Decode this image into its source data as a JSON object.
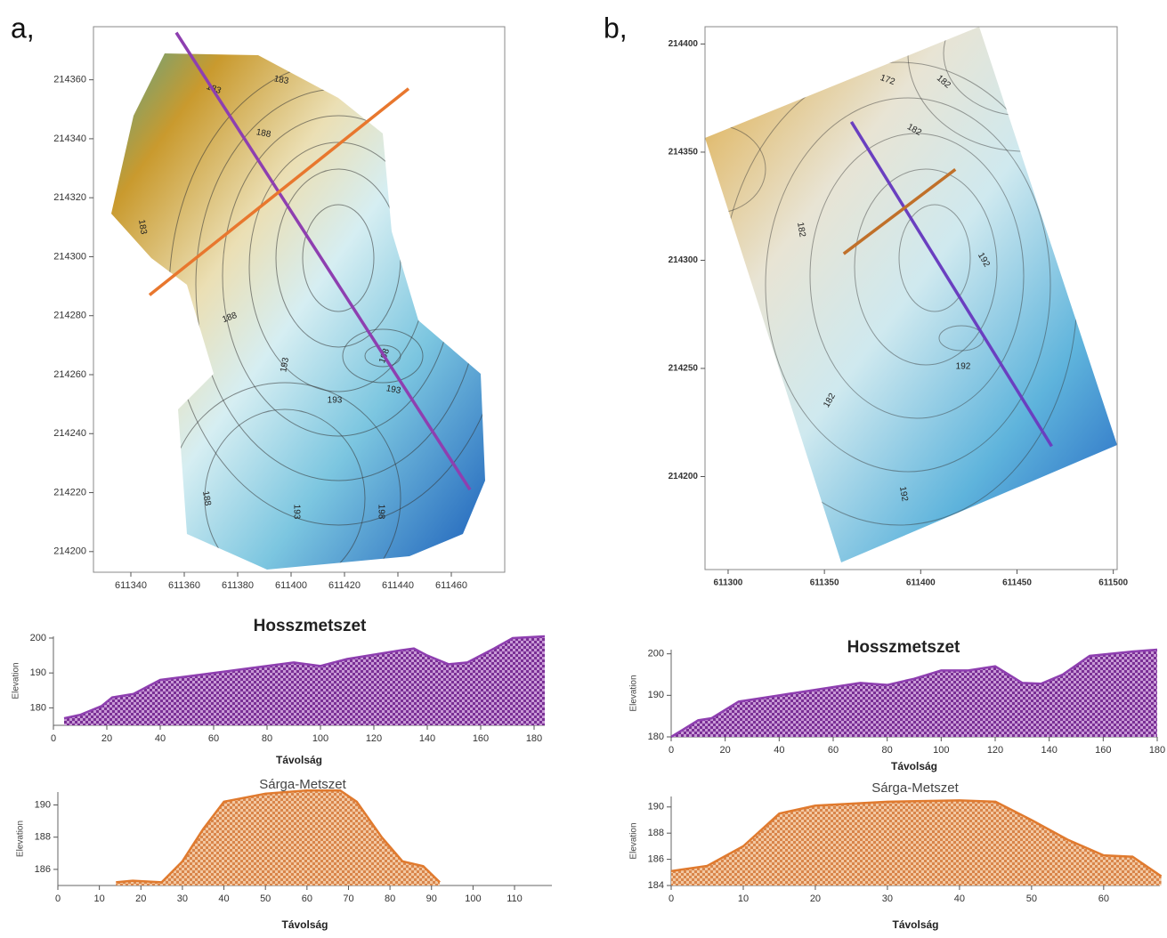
{
  "chart_data": [
    {
      "type": "contour",
      "panel_label": "a,",
      "xlim": [
        611326,
        611480
      ],
      "ylim": [
        214193,
        214378
      ],
      "xticks": [
        611340,
        611360,
        611380,
        611400,
        611420,
        611440,
        611460
      ],
      "yticks": [
        214200,
        214220,
        214240,
        214260,
        214280,
        214300,
        214320,
        214340,
        214360
      ],
      "contour_labels": [
        183,
        183,
        188,
        183,
        188,
        193,
        193,
        198,
        193,
        188,
        193,
        198
      ],
      "lines": [
        {
          "color": "#8e3fb0",
          "x": [
            611357,
            611467
          ],
          "y": [
            214376,
            214221
          ]
        },
        {
          "color": "#e8772e",
          "x": [
            611347,
            611444
          ],
          "y": [
            214287,
            214357
          ]
        }
      ]
    },
    {
      "type": "contour",
      "panel_label": "b,",
      "xlim": [
        611288,
        611502
      ],
      "ylim": [
        214157,
        214408
      ],
      "xticks": [
        611300,
        611350,
        611400,
        611450,
        611500
      ],
      "yticks": [
        214200,
        214250,
        214300,
        214350,
        214400
      ],
      "contour_labels": [
        172,
        182,
        182,
        182,
        192,
        192,
        182,
        192
      ],
      "lines": [
        {
          "color": "#6a3fc0",
          "x": [
            611364,
            611468
          ],
          "y": [
            214364,
            214214
          ]
        },
        {
          "color": "#c0702a",
          "x": [
            611360,
            611418
          ],
          "y": [
            214303,
            214342
          ]
        }
      ]
    },
    {
      "type": "area",
      "title": "Hosszmetszet",
      "x_label": "Távolság",
      "y_label": "Elevation",
      "color": "#8e3fb0",
      "xlim": [
        0,
        184
      ],
      "ylim": [
        175,
        200.5
      ],
      "xticks": [
        0,
        20,
        40,
        60,
        80,
        100,
        120,
        140,
        160,
        180
      ],
      "yticks": [
        180,
        190,
        200
      ],
      "x": [
        4,
        10,
        18,
        22,
        30,
        40,
        50,
        70,
        90,
        100,
        110,
        130,
        135,
        140,
        148,
        155,
        165,
        172,
        184
      ],
      "values": [
        177,
        178,
        180.5,
        183,
        184,
        188,
        189,
        191,
        193,
        192,
        194,
        196.5,
        197,
        195,
        192.5,
        193,
        197,
        200,
        200.5
      ]
    },
    {
      "type": "area",
      "title": "Sárga-Metszet",
      "x_label": "Távolság",
      "y_label": "Elevation",
      "color": "#e07a2e",
      "xlim": [
        0,
        119
      ],
      "ylim": [
        185,
        190.8
      ],
      "xticks": [
        0,
        10,
        20,
        30,
        40,
        50,
        60,
        70,
        80,
        90,
        100,
        110
      ],
      "yticks": [
        186,
        188,
        190
      ],
      "x": [
        14,
        18,
        25,
        30,
        35,
        40,
        50,
        60,
        68,
        72,
        78,
        83,
        88,
        92
      ],
      "values": [
        185.2,
        185.3,
        185.2,
        186.5,
        188.5,
        190.2,
        190.7,
        190.9,
        190.9,
        190.2,
        188,
        186.5,
        186.2,
        185.2
      ]
    },
    {
      "type": "area",
      "title": "Hosszmetszet",
      "x_label": "Távolság",
      "y_label": "Elevation",
      "color": "#8e3fb0",
      "xlim": [
        0,
        180
      ],
      "ylim": [
        180,
        201
      ],
      "xticks": [
        0,
        20,
        40,
        60,
        80,
        100,
        120,
        140,
        160,
        180
      ],
      "yticks": [
        180,
        190,
        200
      ],
      "x": [
        0,
        5,
        10,
        15,
        25,
        40,
        70,
        80,
        90,
        100,
        110,
        120,
        125,
        130,
        137,
        145,
        155,
        170,
        180
      ],
      "values": [
        180,
        182,
        184,
        184.5,
        188.5,
        190,
        193,
        192.5,
        194,
        196,
        196,
        197,
        195,
        193,
        192.8,
        195,
        199.5,
        200.5,
        201
      ]
    },
    {
      "type": "area",
      "title": "Sárga-Metszet",
      "x_label": "Távolság",
      "y_label": "Elevation",
      "color": "#e07a2e",
      "xlim": [
        0,
        67.8
      ],
      "ylim": [
        184,
        190.8
      ],
      "xticks": [
        0,
        10,
        20,
        30,
        40,
        50,
        60
      ],
      "yticks": [
        184,
        186,
        188,
        190
      ],
      "x": [
        0,
        5,
        10,
        15,
        20,
        30,
        40,
        45,
        50,
        55,
        60,
        64,
        68
      ],
      "values": [
        185.1,
        185.5,
        187,
        189.5,
        190.1,
        190.4,
        190.5,
        190.4,
        189,
        187.5,
        186.3,
        186.2,
        184.7
      ]
    }
  ]
}
